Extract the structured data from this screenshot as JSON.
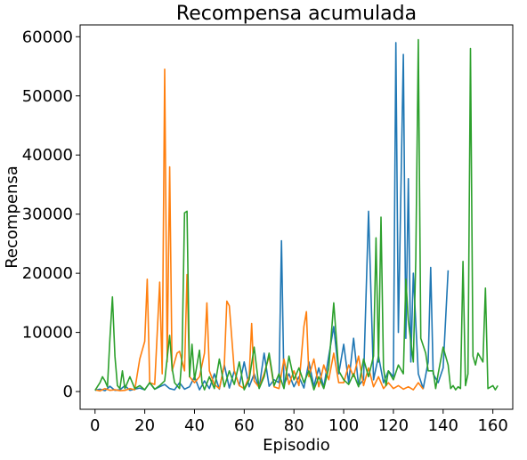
{
  "chart_data": {
    "type": "line",
    "title": "Recompensa acumulada",
    "xlabel": "Episodio",
    "ylabel": "Recompensa",
    "xlim": [
      -6,
      168
    ],
    "ylim": [
      -3000,
      62000
    ],
    "xticks": [
      0,
      20,
      40,
      60,
      80,
      100,
      120,
      140,
      160
    ],
    "xtick_labels": [
      "0",
      "20",
      "40",
      "60",
      "80",
      "100",
      "120",
      "140",
      "160"
    ],
    "yticks": [
      0,
      10000,
      20000,
      30000,
      40000,
      50000,
      60000
    ],
    "ytick_labels": [
      "0",
      "10000",
      "20000",
      "30000",
      "40000",
      "50000",
      "60000"
    ],
    "grid": false,
    "legend": "none",
    "series": [
      {
        "color": "#1f77b4",
        "points": [
          [
            0,
            200
          ],
          [
            2,
            400
          ],
          [
            4,
            150
          ],
          [
            6,
            900
          ],
          [
            8,
            200
          ],
          [
            10,
            300
          ],
          [
            12,
            1000
          ],
          [
            14,
            200
          ],
          [
            16,
            400
          ],
          [
            18,
            600
          ],
          [
            20,
            300
          ],
          [
            22,
            1500
          ],
          [
            24,
            400
          ],
          [
            26,
            800
          ],
          [
            28,
            1200
          ],
          [
            30,
            500
          ],
          [
            32,
            300
          ],
          [
            34,
            1500
          ],
          [
            36,
            400
          ],
          [
            38,
            800
          ],
          [
            40,
            2500
          ],
          [
            42,
            300
          ],
          [
            44,
            1800
          ],
          [
            46,
            500
          ],
          [
            48,
            3000
          ],
          [
            50,
            400
          ],
          [
            52,
            4500
          ],
          [
            54,
            600
          ],
          [
            56,
            3500
          ],
          [
            58,
            1000
          ],
          [
            60,
            5000
          ],
          [
            62,
            800
          ],
          [
            64,
            3000
          ],
          [
            66,
            600
          ],
          [
            68,
            6500
          ],
          [
            70,
            900
          ],
          [
            72,
            2000
          ],
          [
            74,
            1500
          ],
          [
            75,
            25500
          ],
          [
            76,
            1200
          ],
          [
            78,
            3000
          ],
          [
            80,
            800
          ],
          [
            82,
            2500
          ],
          [
            84,
            600
          ],
          [
            86,
            5000
          ],
          [
            88,
            900
          ],
          [
            90,
            4000
          ],
          [
            92,
            700
          ],
          [
            94,
            6000
          ],
          [
            96,
            11000
          ],
          [
            98,
            3000
          ],
          [
            100,
            8000
          ],
          [
            102,
            1500
          ],
          [
            104,
            9000
          ],
          [
            106,
            1000
          ],
          [
            108,
            2000
          ],
          [
            110,
            30500
          ],
          [
            112,
            2000
          ],
          [
            114,
            6000
          ],
          [
            116,
            1500
          ],
          [
            118,
            3500
          ],
          [
            120,
            2500
          ],
          [
            121,
            59000
          ],
          [
            122,
            10000
          ],
          [
            124,
            57000
          ],
          [
            125,
            9000
          ],
          [
            126,
            36000
          ],
          [
            127,
            5000
          ],
          [
            128,
            20000
          ],
          [
            130,
            3000
          ],
          [
            132,
            500
          ],
          [
            134,
            5000
          ],
          [
            135,
            21000
          ],
          [
            136,
            3000
          ],
          [
            138,
            1500
          ],
          [
            140,
            4000
          ],
          [
            142,
            20500
          ]
        ]
      },
      {
        "color": "#ff7f0e",
        "points": [
          [
            0,
            300
          ],
          [
            2,
            100
          ],
          [
            4,
            500
          ],
          [
            6,
            200
          ],
          [
            8,
            300
          ],
          [
            10,
            150
          ],
          [
            12,
            200
          ],
          [
            14,
            500
          ],
          [
            16,
            300
          ],
          [
            18,
            5500
          ],
          [
            20,
            8500
          ],
          [
            21,
            19000
          ],
          [
            22,
            1500
          ],
          [
            24,
            1200
          ],
          [
            26,
            18500
          ],
          [
            27,
            3000
          ],
          [
            28,
            54500
          ],
          [
            29,
            5000
          ],
          [
            30,
            38000
          ],
          [
            31,
            3500
          ],
          [
            33,
            6500
          ],
          [
            34,
            6800
          ],
          [
            36,
            3500
          ],
          [
            37,
            19800
          ],
          [
            38,
            2500
          ],
          [
            40,
            1500
          ],
          [
            42,
            2500
          ],
          [
            44,
            6500
          ],
          [
            45,
            15000
          ],
          [
            46,
            3500
          ],
          [
            48,
            1200
          ],
          [
            50,
            500
          ],
          [
            52,
            4500
          ],
          [
            53,
            15300
          ],
          [
            54,
            14500
          ],
          [
            56,
            3500
          ],
          [
            58,
            1000
          ],
          [
            60,
            500
          ],
          [
            62,
            2500
          ],
          [
            63,
            11500
          ],
          [
            64,
            1800
          ],
          [
            66,
            700
          ],
          [
            68,
            3000
          ],
          [
            70,
            6000
          ],
          [
            72,
            800
          ],
          [
            74,
            500
          ],
          [
            76,
            5500
          ],
          [
            78,
            1200
          ],
          [
            80,
            3500
          ],
          [
            82,
            1000
          ],
          [
            84,
            11000
          ],
          [
            85,
            13500
          ],
          [
            86,
            2500
          ],
          [
            88,
            5500
          ],
          [
            90,
            800
          ],
          [
            92,
            4500
          ],
          [
            94,
            2000
          ],
          [
            96,
            6500
          ],
          [
            98,
            1500
          ],
          [
            100,
            1500
          ],
          [
            102,
            4500
          ],
          [
            104,
            2500
          ],
          [
            106,
            6000
          ],
          [
            108,
            1000
          ],
          [
            110,
            4000
          ],
          [
            112,
            800
          ],
          [
            114,
            2500
          ],
          [
            116,
            500
          ],
          [
            118,
            1500
          ],
          [
            120,
            500
          ],
          [
            122,
            1000
          ],
          [
            124,
            400
          ],
          [
            126,
            800
          ],
          [
            128,
            300
          ],
          [
            130,
            1500
          ],
          [
            132,
            400
          ]
        ]
      },
      {
        "color": "#2ca02c",
        "points": [
          [
            0,
            200
          ],
          [
            2,
            1500
          ],
          [
            3,
            2500
          ],
          [
            4,
            1800
          ],
          [
            5,
            800
          ],
          [
            6,
            9000
          ],
          [
            7,
            16000
          ],
          [
            8,
            6000
          ],
          [
            9,
            1000
          ],
          [
            10,
            500
          ],
          [
            11,
            3500
          ],
          [
            12,
            500
          ],
          [
            14,
            2500
          ],
          [
            16,
            500
          ],
          [
            18,
            1000
          ],
          [
            20,
            300
          ],
          [
            22,
            1500
          ],
          [
            24,
            400
          ],
          [
            26,
            1000
          ],
          [
            28,
            1800
          ],
          [
            30,
            9500
          ],
          [
            31,
            4000
          ],
          [
            32,
            1500
          ],
          [
            34,
            500
          ],
          [
            35,
            6000
          ],
          [
            36,
            30200
          ],
          [
            37,
            30500
          ],
          [
            38,
            2500
          ],
          [
            39,
            8000
          ],
          [
            40,
            2000
          ],
          [
            42,
            7000
          ],
          [
            43,
            1500
          ],
          [
            44,
            300
          ],
          [
            46,
            2500
          ],
          [
            48,
            500
          ],
          [
            50,
            5500
          ],
          [
            52,
            800
          ],
          [
            54,
            3500
          ],
          [
            56,
            1200
          ],
          [
            58,
            5000
          ],
          [
            60,
            300
          ],
          [
            62,
            2000
          ],
          [
            64,
            7500
          ],
          [
            66,
            500
          ],
          [
            68,
            2500
          ],
          [
            70,
            6500
          ],
          [
            72,
            1000
          ],
          [
            74,
            3000
          ],
          [
            76,
            500
          ],
          [
            78,
            6000
          ],
          [
            80,
            2000
          ],
          [
            82,
            4000
          ],
          [
            84,
            1500
          ],
          [
            86,
            3500
          ],
          [
            88,
            300
          ],
          [
            90,
            2500
          ],
          [
            92,
            500
          ],
          [
            94,
            4000
          ],
          [
            96,
            15000
          ],
          [
            98,
            3500
          ],
          [
            100,
            2000
          ],
          [
            102,
            1200
          ],
          [
            104,
            3000
          ],
          [
            106,
            800
          ],
          [
            108,
            5500
          ],
          [
            110,
            2500
          ],
          [
            112,
            6000
          ],
          [
            113,
            26000
          ],
          [
            114,
            5000
          ],
          [
            115,
            29500
          ],
          [
            116,
            4000
          ],
          [
            117,
            1000
          ],
          [
            118,
            3500
          ],
          [
            120,
            2000
          ],
          [
            122,
            4500
          ],
          [
            124,
            3000
          ],
          [
            125,
            19000
          ],
          [
            126,
            12000
          ],
          [
            128,
            5000
          ],
          [
            129,
            22500
          ],
          [
            130,
            59500
          ],
          [
            131,
            9000
          ],
          [
            133,
            6500
          ],
          [
            134,
            3500
          ],
          [
            136,
            3500
          ],
          [
            137,
            500
          ],
          [
            138,
            3000
          ],
          [
            140,
            7500
          ],
          [
            142,
            4500
          ],
          [
            143,
            500
          ],
          [
            144,
            1000
          ],
          [
            145,
            300
          ],
          [
            146,
            800
          ],
          [
            147,
            500
          ],
          [
            148,
            22000
          ],
          [
            149,
            1000
          ],
          [
            150,
            3000
          ],
          [
            151,
            58000
          ],
          [
            152,
            6000
          ],
          [
            153,
            4500
          ],
          [
            154,
            6500
          ],
          [
            156,
            5000
          ],
          [
            157,
            17500
          ],
          [
            158,
            500
          ],
          [
            160,
            1000
          ],
          [
            161,
            300
          ],
          [
            162,
            1000
          ]
        ]
      }
    ]
  }
}
